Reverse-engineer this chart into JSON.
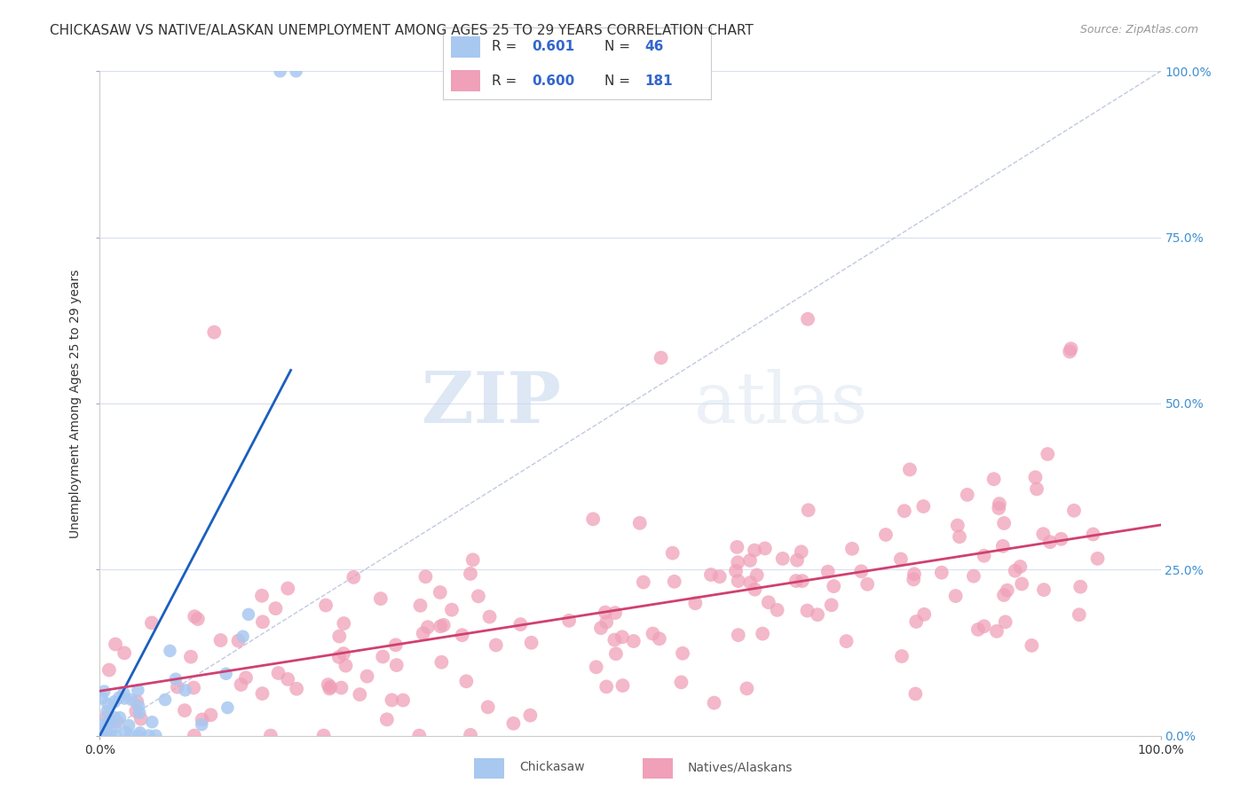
{
  "title": "CHICKASAW VS NATIVE/ALASKAN UNEMPLOYMENT AMONG AGES 25 TO 29 YEARS CORRELATION CHART",
  "source": "Source: ZipAtlas.com",
  "ylabel": "Unemployment Among Ages 25 to 29 years",
  "xlim": [
    0,
    1
  ],
  "ylim": [
    0,
    1
  ],
  "xtick_labels": [
    "0.0%",
    "100.0%"
  ],
  "ytick_positions": [
    0.0,
    0.25,
    0.5,
    0.75,
    1.0
  ],
  "ytick_labels_right": [
    "0.0%",
    "25.0%",
    "50.0%",
    "75.0%",
    "100.0%"
  ],
  "background_color": "#ffffff",
  "watermark_zip": "ZIP",
  "watermark_atlas": "atlas",
  "chickasaw_color": "#a8c8f0",
  "natives_color": "#f0a0b8",
  "line1_color": "#1a5fbf",
  "line2_color": "#d04070",
  "dashed_line_color": "#b0bcd8",
  "grid_color": "#d8dff0",
  "title_fontsize": 11,
  "axis_label_fontsize": 10,
  "tick_label_fontsize": 10,
  "right_ytick_color": "#4090d0",
  "seed": 42,
  "chickasaw_n": 46,
  "natives_n": 181,
  "chickasaw_r": 0.601,
  "natives_r": 0.6,
  "legend_r1": "0.601",
  "legend_n1": "46",
  "legend_r2": "0.600",
  "legend_n2": "181"
}
